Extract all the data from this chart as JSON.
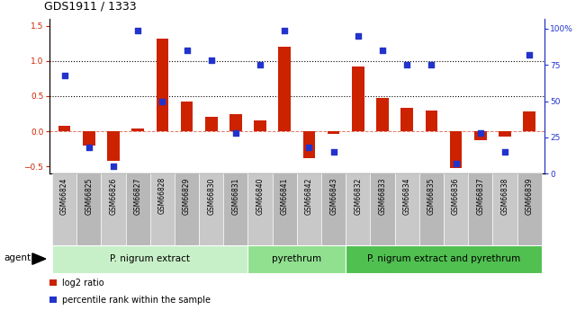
{
  "title": "GDS1911 / 1333",
  "samples": [
    "GSM66824",
    "GSM66825",
    "GSM66826",
    "GSM66827",
    "GSM66828",
    "GSM66829",
    "GSM66830",
    "GSM66831",
    "GSM66840",
    "GSM66841",
    "GSM66842",
    "GSM66843",
    "GSM66832",
    "GSM66833",
    "GSM66834",
    "GSM66835",
    "GSM66836",
    "GSM66837",
    "GSM66838",
    "GSM66839"
  ],
  "log2_ratio": [
    0.08,
    -0.2,
    -0.42,
    0.04,
    1.32,
    0.42,
    0.2,
    0.24,
    0.16,
    1.2,
    -0.38,
    -0.04,
    0.92,
    0.48,
    0.33,
    0.3,
    -0.52,
    -0.12,
    -0.08,
    0.28
  ],
  "pct_rank": [
    68,
    18,
    5,
    99,
    50,
    85,
    78,
    28,
    75,
    99,
    18,
    15,
    95,
    85,
    75,
    75,
    7,
    28,
    15,
    82
  ],
  "groups": [
    {
      "label": "P. nigrum extract",
      "start": 0,
      "end": 7,
      "color": "#c8f0c8"
    },
    {
      "label": "pyrethrum",
      "start": 8,
      "end": 11,
      "color": "#90e090"
    },
    {
      "label": "P. nigrum extract and pyrethrum",
      "start": 12,
      "end": 19,
      "color": "#50c050"
    }
  ],
  "bar_color": "#cc2200",
  "dot_color": "#2233cc",
  "ylim_left": [
    -0.6,
    1.6
  ],
  "ylim_right": [
    0,
    107
  ],
  "yticks_left": [
    -0.5,
    0.0,
    0.5,
    1.0,
    1.5
  ],
  "yticks_right": [
    0,
    25,
    50,
    75,
    100
  ],
  "hlines": [
    0.5,
    1.0
  ],
  "bar_width": 0.5,
  "bg_color": "#ffffff",
  "tick_label_fontsize": 5.5,
  "title_fontsize": 9,
  "legend_fontsize": 7,
  "group_fontsize": 7.5,
  "agent_fontsize": 7.5
}
